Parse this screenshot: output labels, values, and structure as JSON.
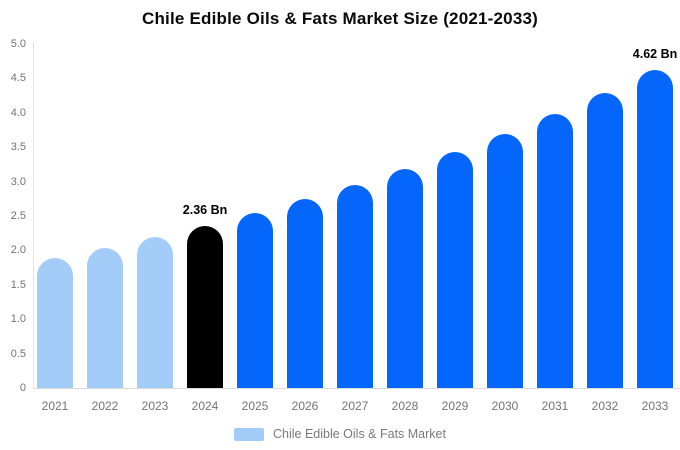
{
  "title": "Chile Edible Oils & Fats Market Size (2021-2033)",
  "legend": {
    "label": "Chile Edible Oils & Fats Market",
    "swatch_color": "#A3CDF8"
  },
  "colors": {
    "historical_bar": "#A3CDF8",
    "highlight_bar": "#000000",
    "forecast_bar": "#0566FC",
    "axis_line": "#e3e3e3",
    "tick_text": "#737373",
    "annotation_text": "#000000",
    "background": "#ffffff"
  },
  "chart_data": {
    "type": "bar",
    "title": "Chile Edible Oils & Fats Market Size (2021-2033)",
    "xlabel": "",
    "ylabel": "",
    "unit": "Bn",
    "categories": [
      "2021",
      "2022",
      "2023",
      "2024",
      "2025",
      "2026",
      "2027",
      "2028",
      "2029",
      "2030",
      "2031",
      "2032",
      "2033"
    ],
    "values": [
      1.89,
      2.03,
      2.19,
      2.36,
      2.54,
      2.74,
      2.95,
      3.18,
      3.43,
      3.69,
      3.98,
      4.29,
      4.62
    ],
    "bar_colors": [
      "#A3CDF8",
      "#A3CDF8",
      "#A3CDF8",
      "#000000",
      "#0566FC",
      "#0566FC",
      "#0566FC",
      "#0566FC",
      "#0566FC",
      "#0566FC",
      "#0566FC",
      "#0566FC",
      "#0566FC"
    ],
    "ylim": [
      0,
      5
    ],
    "yticks": [
      0,
      0.5,
      1,
      1.5,
      2,
      2.5,
      3,
      3.5,
      4,
      4.5,
      5
    ],
    "ytick_labels": [
      "0",
      "0.5",
      "1.0",
      "1.5",
      "2.0",
      "2.5",
      "3.0",
      "3.5",
      "4.0",
      "4.5",
      "5.0"
    ],
    "grid": false,
    "legend_position": "bottom",
    "annotations": [
      {
        "category": "2024",
        "text": "2.36 Bn"
      },
      {
        "category": "2033",
        "text": "4.62 Bn"
      }
    ]
  }
}
